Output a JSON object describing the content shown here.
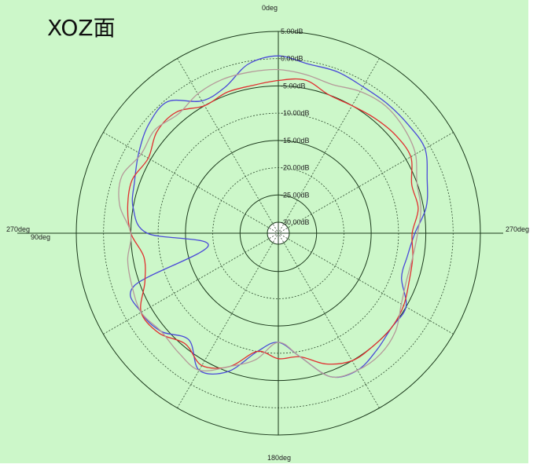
{
  "title": "XOZ面",
  "chart_data": {
    "type": "polar",
    "title": "XOZ面",
    "unit": "dB",
    "r_range_db": [
      -30,
      5
    ],
    "radial_tick_labels": [
      "5.00dB",
      "0.00dB",
      "-5.00dB",
      "-10.00dB",
      "-15.00dB",
      "-20.00dB",
      "-25.00dB",
      "-30.00dB"
    ],
    "angle_labels": {
      "top": "0deg",
      "left": "270deg",
      "left_inner": "90deg",
      "right": "270deg",
      "bottom": "180deg"
    },
    "grid": true,
    "series": [
      {
        "color": "#4a4ad8",
        "angles": [
          0,
          10,
          20,
          30,
          40,
          50,
          60,
          70,
          80,
          90,
          100,
          110,
          120,
          130,
          140,
          150,
          160,
          170,
          180,
          190,
          200,
          210,
          220,
          230,
          240,
          250,
          260,
          270,
          280,
          290,
          300,
          310,
          320,
          330,
          340,
          350
        ],
        "values": [
          0.5,
          -0.5,
          -3.5,
          -4,
          -0.5,
          -1,
          -2.5,
          -4,
          -5,
          -8,
          -19,
          -4,
          -3,
          -4,
          -6.5,
          -3,
          -5,
          -10,
          -12,
          -9,
          -4,
          -3,
          -4,
          -5,
          -5,
          -8,
          -8,
          -7,
          -4.5,
          -3,
          -1,
          -1,
          -1,
          -1,
          -0.5,
          -0.5
        ]
      },
      {
        "color": "#e03030",
        "angles": [
          0,
          10,
          20,
          30,
          40,
          50,
          60,
          70,
          80,
          90,
          100,
          110,
          120,
          130,
          140,
          150,
          160,
          170,
          180,
          190,
          200,
          210,
          220,
          230,
          240,
          250,
          260,
          270,
          280,
          290,
          300,
          310,
          320,
          330,
          340,
          350
        ],
        "values": [
          -4,
          -4.5,
          -4.5,
          -5,
          -3,
          -3,
          -4.5,
          -3.5,
          -4,
          -5,
          -7,
          -6,
          -3,
          -3.5,
          -5.5,
          -4,
          -6,
          -10,
          -9,
          -9,
          -6.5,
          -5,
          -5,
          -5,
          -5.5,
          -6.5,
          -7,
          -7.5,
          -6,
          -6,
          -4,
          -4,
          -4.5,
          -5,
          -5,
          -3.5
        ]
      },
      {
        "color": "#b59a9a",
        "angles": [
          0,
          10,
          20,
          30,
          40,
          50,
          60,
          70,
          80,
          90,
          100,
          110,
          120,
          130,
          140,
          150,
          160,
          170,
          180,
          190,
          200,
          210,
          220,
          230,
          240,
          250,
          260,
          270,
          280,
          290,
          300,
          310,
          320,
          330,
          340,
          350
        ],
        "values": [
          -2,
          -2,
          -2,
          -2.5,
          -3.5,
          -2.5,
          -3,
          -1.5,
          -2.5,
          -5,
          -4,
          -3.5,
          -3,
          -4,
          -3.5,
          -3,
          -6,
          -8.5,
          -12,
          -9,
          -4,
          -3,
          -3,
          -4,
          -6,
          -7,
          -7,
          -6.5,
          -5.5,
          -5,
          -3,
          -2,
          -1.5,
          -2,
          -3,
          -2.5
        ]
      }
    ]
  }
}
